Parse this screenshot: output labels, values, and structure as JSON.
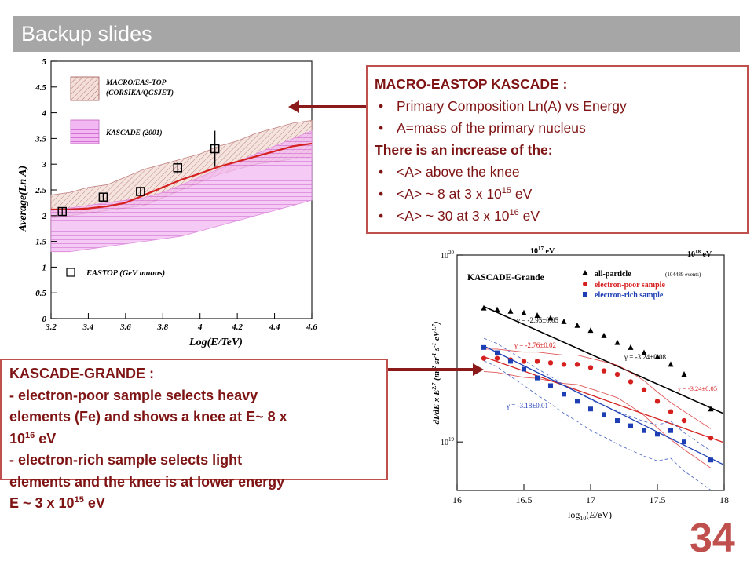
{
  "slide": {
    "title": "Backup slides",
    "page_number": "34"
  },
  "box_top": {
    "heading": "MACRO-EASTOP KASCADE :",
    "bullet1": "Primary Composition Ln(A) vs Energy",
    "bullet2": "A=mass of the primary nucleus",
    "subheading": "There is an increase of the:",
    "bullet3": "<A> above the knee",
    "bullet4_pre": "<A> ~ 8 at 3 x 10",
    "bullet4_exp": "15",
    "bullet4_post": " eV",
    "bullet5_pre": "<A> ~ 30 at 3 x 10",
    "bullet5_exp": "16",
    "bullet5_post": " eV"
  },
  "box_bottom": {
    "line1": "KASCADE-GRANDE :",
    "line2": "- electron-poor sample selects heavy",
    "line3": "elements (Fe) and shows a knee at E~ 8 x",
    "line4_pre": "10",
    "line4_exp": "16",
    "line4_post": " eV",
    "line5": "- electron-rich sample selects light",
    "line6": "elements and the knee is at lower energy",
    "line7_pre": "E ~ 3 x 10",
    "line7_exp": "15",
    "line7_post": " eV"
  },
  "chart_data": [
    {
      "type": "line",
      "xlabel": "Log(E/TeV)",
      "ylabel": "Average(Ln A)",
      "xlim": [
        3.2,
        4.6
      ],
      "ylim": [
        0,
        5
      ],
      "x_ticks": [
        "3.2",
        "3.4",
        "3.6",
        "3.8",
        "4",
        "4.2",
        "4.4",
        "4.6"
      ],
      "y_ticks": [
        "0",
        "0.5",
        "1",
        "1.5",
        "2",
        "2.5",
        "3",
        "3.5",
        "4",
        "4.5",
        "5"
      ],
      "legend": [
        "MACRO/EAS-TOP (CORSIKA/QGSJET)",
        "KASCADE (2001)",
        "EASTOP (GeV muons)"
      ],
      "legend_line1": "MACRO/EAS-TOP",
      "legend_line1b": "(CORSIKA/QGSJET)",
      "legend_line2": "KASCADE (2001)",
      "legend_line3": "EASTOP (GeV muons)",
      "series": [
        {
          "name": "MACRO/EAS-TOP (CORSIKA/QGSJET)",
          "style": "band",
          "color": "#c08080",
          "x": [
            3.2,
            3.3,
            3.4,
            3.5,
            3.6,
            3.7,
            3.8,
            3.9,
            4.0,
            4.1,
            4.2,
            4.3,
            4.4,
            4.5,
            4.6
          ],
          "upper": [
            2.4,
            2.45,
            2.55,
            2.6,
            2.75,
            2.9,
            3.0,
            3.1,
            3.2,
            3.35,
            3.45,
            3.6,
            3.7,
            3.8,
            3.85
          ],
          "lower": [
            1.95,
            2.0,
            2.05,
            2.1,
            2.15,
            2.2,
            2.35,
            2.5,
            2.65,
            2.8,
            2.9,
            3.0,
            3.05,
            3.1,
            3.1
          ]
        },
        {
          "name": "KASCADE (2001)",
          "style": "band",
          "color": "#e090e0",
          "x": [
            3.2,
            3.3,
            3.4,
            3.5,
            3.6,
            3.7,
            3.8,
            3.9,
            4.0,
            4.1,
            4.2,
            4.3,
            4.4,
            4.5,
            4.6
          ],
          "upper": [
            2.1,
            2.15,
            2.2,
            2.25,
            2.3,
            2.35,
            2.45,
            2.6,
            2.75,
            2.9,
            3.05,
            3.2,
            3.35,
            3.5,
            3.65
          ],
          "lower": [
            1.3,
            1.3,
            1.35,
            1.4,
            1.45,
            1.5,
            1.55,
            1.6,
            1.7,
            1.8,
            1.9,
            2.0,
            2.1,
            2.2,
            2.3
          ]
        },
        {
          "name": "model curve",
          "style": "line",
          "color": "#d62020",
          "x": [
            3.2,
            3.3,
            3.4,
            3.5,
            3.6,
            3.7,
            3.8,
            3.9,
            4.0,
            4.1,
            4.2,
            4.3,
            4.4,
            4.5,
            4.6
          ],
          "y": [
            2.12,
            2.12,
            2.14,
            2.18,
            2.25,
            2.4,
            2.55,
            2.7,
            2.82,
            2.95,
            3.05,
            3.15,
            3.25,
            3.35,
            3.4
          ]
        },
        {
          "name": "EASTOP (GeV muons)",
          "style": "points",
          "x": [
            3.26,
            3.48,
            3.68,
            3.88,
            4.08
          ],
          "y": [
            2.08,
            2.36,
            2.47,
            2.93,
            3.3
          ],
          "err": [
            0.07,
            0.07,
            0.07,
            0.12,
            0.35
          ]
        }
      ]
    },
    {
      "type": "scatter",
      "title": "KASCADE-Grande",
      "xlabel": "log10(E/eV)",
      "ylabel": "dI/dE x E^2.7 (m^-2 sr^-1 s^-1 eV^1.7)",
      "xlim": [
        16,
        18
      ],
      "y_log": true,
      "x_ticks": [
        "16",
        "16.5",
        "17",
        "17.5",
        "18"
      ],
      "y_ticks": [
        "10^19",
        "10^20"
      ],
      "top_labels": [
        "10^17 eV",
        "10^18 eV"
      ],
      "legend": [
        "all-particle (104489 events)",
        "electron-poor sample",
        "electron-rich sample"
      ],
      "legend_allparticle": "all-particle",
      "legend_events": "(104489 events)",
      "legend_epoor": "electron-poor sample",
      "legend_erich": "electron-rich sample",
      "gamma_labels": [
        "γ = -2.95±0.05",
        "γ = -2.76±0.02",
        "γ = -3.24±0.08",
        "γ = -3.18±0.01",
        "γ = -3.24±0.05"
      ],
      "series": [
        {
          "name": "all-particle",
          "color": "#000000",
          "marker": "triangle",
          "x": [
            16.2,
            16.3,
            16.4,
            16.5,
            16.6,
            16.7,
            16.8,
            16.9,
            17.0,
            17.1,
            17.2,
            17.3,
            17.4,
            17.5,
            17.6,
            17.7,
            17.9
          ],
          "y": [
            5.2,
            5.1,
            5.0,
            4.9,
            4.75,
            4.6,
            4.4,
            4.2,
            3.95,
            3.7,
            3.4,
            3.2,
            3.0,
            2.85,
            2.6,
            2.3,
            1.5
          ]
        },
        {
          "name": "electron-poor sample",
          "color": "#d62020",
          "marker": "circle",
          "x": [
            16.2,
            16.3,
            16.4,
            16.5,
            16.6,
            16.7,
            16.8,
            16.9,
            17.0,
            17.1,
            17.2,
            17.3,
            17.4,
            17.5,
            17.6,
            17.7,
            17.9
          ],
          "y": [
            2.8,
            2.8,
            2.75,
            2.7,
            2.7,
            2.65,
            2.6,
            2.6,
            2.5,
            2.4,
            2.3,
            2.1,
            1.9,
            1.65,
            1.45,
            1.3,
            1.05
          ]
        },
        {
          "name": "electron-rich sample",
          "color": "#1e3fb4",
          "marker": "square",
          "x": [
            16.2,
            16.3,
            16.4,
            16.5,
            16.6,
            16.7,
            16.8,
            16.9,
            17.0,
            17.1,
            17.2,
            17.3,
            17.4,
            17.5,
            17.6,
            17.7,
            17.9
          ],
          "y": [
            3.2,
            3.0,
            2.7,
            2.45,
            2.2,
            2.0,
            1.8,
            1.65,
            1.5,
            1.4,
            1.3,
            1.22,
            1.15,
            1.1,
            1.15,
            1.0,
            0.8
          ]
        }
      ]
    }
  ]
}
